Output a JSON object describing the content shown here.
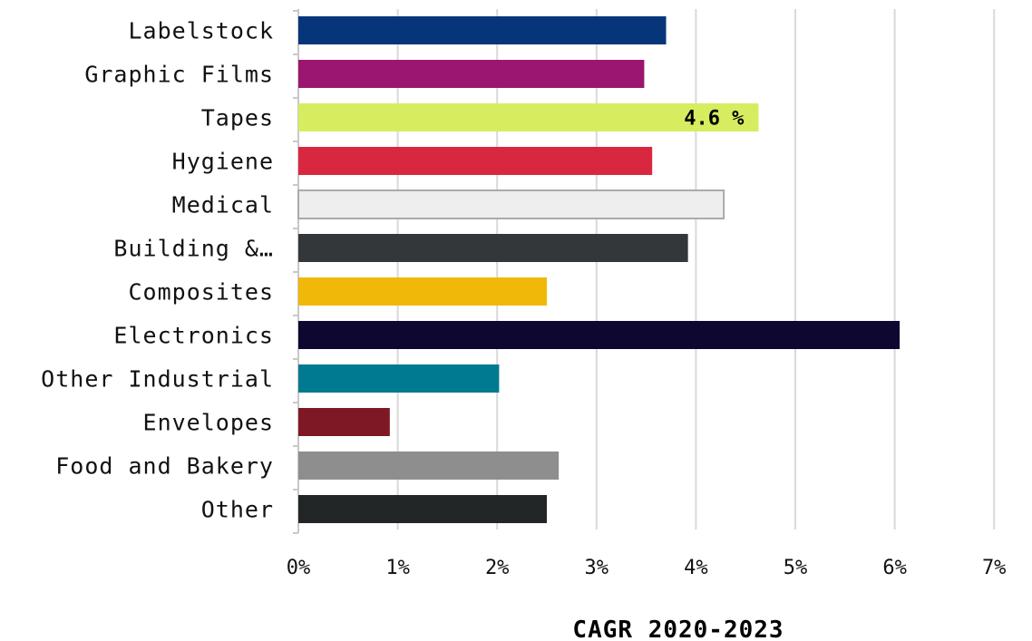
{
  "chart_data": {
    "type": "bar",
    "orientation": "horizontal",
    "categories": [
      "Labelstock",
      "Graphic Films",
      "Tapes",
      "Hygiene",
      "Medical",
      "Building &…",
      "Composites",
      "Electronics",
      "Other Industrial",
      "Envelopes",
      "Food and Bakery",
      "Other"
    ],
    "values": [
      3.7,
      3.48,
      4.63,
      3.56,
      4.28,
      3.92,
      2.5,
      6.05,
      2.02,
      0.92,
      2.62,
      2.5
    ],
    "colors": [
      "#06357a",
      "#9b1670",
      "#d7ed5f",
      "#da2740",
      "#eeeeee",
      "#333739",
      "#f0b808",
      "#0e0730",
      "#007a90",
      "#7e1825",
      "#8e8e8e",
      "#222627"
    ],
    "data_labels": [
      {
        "category": "Tapes",
        "text": "4.6 %"
      }
    ],
    "xlabel": "CAGR 2020-2023",
    "ylabel": "",
    "xlim": [
      0,
      7
    ],
    "xticks": [
      "0%",
      "1%",
      "2%",
      "3%",
      "4%",
      "5%",
      "6%",
      "7%"
    ],
    "grid": "vertical",
    "legend": "none"
  }
}
